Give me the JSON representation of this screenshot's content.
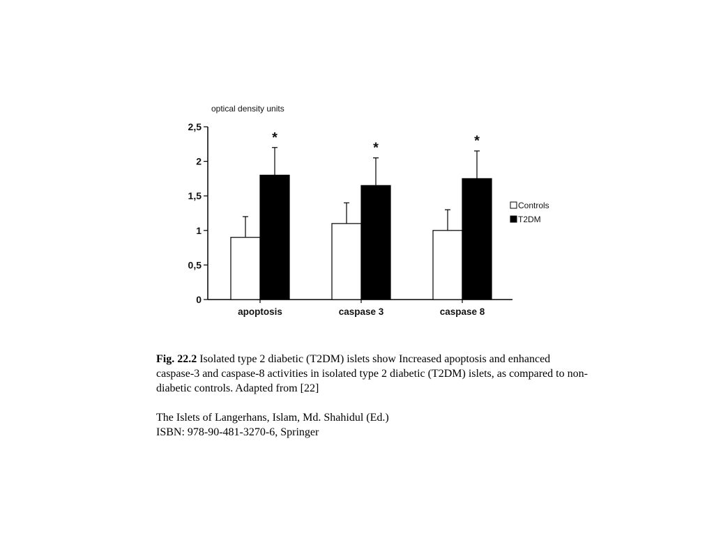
{
  "chart_data": {
    "type": "bar",
    "ylabel": "optical density units",
    "categories": [
      "apoptosis",
      "caspase 3",
      "caspase 8"
    ],
    "yticks": [
      "0",
      "0,5",
      "1",
      "1,5",
      "2",
      "2,5"
    ],
    "ylim": [
      0,
      2.5
    ],
    "series": [
      {
        "name": "Controls",
        "values": [
          0.9,
          1.1,
          1.0
        ],
        "errors": [
          0.3,
          0.3,
          0.3
        ],
        "color": "#ffffff"
      },
      {
        "name": "T2DM",
        "values": [
          1.8,
          1.65,
          1.75
        ],
        "errors": [
          0.4,
          0.4,
          0.4
        ],
        "color": "#000000"
      }
    ],
    "significance_marker": "*",
    "significance": [
      true,
      true,
      true
    ],
    "legend_position": "right",
    "grid": false
  },
  "caption": {
    "figure_number": "Fig. 22.2",
    "text": "Isolated type 2 diabetic (T2DM) islets show Increased apoptosis and enhanced caspase-3 and caspase-8 activities in isolated type 2 diabetic (T2DM) islets, as compared to non-diabetic controls. Adapted from [22]"
  },
  "source": {
    "line1": "The Islets of Langerhans, Islam, Md. Shahidul (Ed.)",
    "line2": "ISBN: 978-90-481-3270-6, Springer"
  }
}
